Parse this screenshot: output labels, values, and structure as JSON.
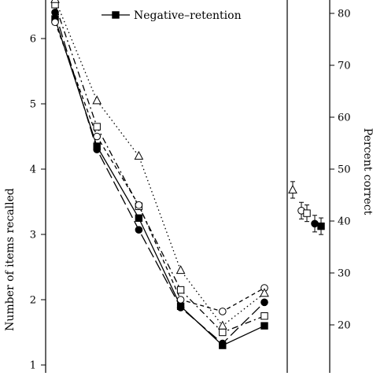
{
  "chart_data": {
    "type": "line",
    "left_panel": {
      "ylabel": "Number of items recalled",
      "ylim": [
        1,
        6.85
      ],
      "yticks": [
        1,
        2,
        3,
        4,
        5,
        6
      ],
      "x": [
        1,
        2,
        3,
        4,
        5,
        6
      ],
      "series": [
        {
          "key": "s1",
          "marker": "filled-square",
          "line": "solid",
          "values": [
            6.3,
            4.35,
            3.25,
            1.9,
            1.3,
            1.6
          ]
        },
        {
          "key": "s2",
          "marker": "filled-circle",
          "line": "long-dash",
          "values": [
            6.4,
            4.3,
            3.07,
            1.88,
            1.33,
            1.96
          ]
        },
        {
          "key": "s3",
          "marker": "open-square",
          "line": "dash-dot",
          "values": [
            6.52,
            4.65,
            3.43,
            2.15,
            1.5,
            1.75
          ]
        },
        {
          "key": "s4",
          "marker": "open-circle",
          "line": "short-dash",
          "values": [
            6.25,
            4.5,
            3.45,
            2.0,
            1.82,
            2.18
          ]
        },
        {
          "key": "s5",
          "marker": "open-triangle",
          "line": "dotted",
          "values": [
            6.6,
            5.05,
            4.2,
            2.45,
            1.6,
            2.1
          ]
        }
      ]
    },
    "right_panel": {
      "ylabel": "Percent correct",
      "ylim": [
        13,
        81
      ],
      "yticks": [
        20,
        30,
        40,
        50,
        60,
        70,
        80
      ],
      "points": [
        {
          "key": "s5",
          "marker": "open-triangle",
          "value": 46,
          "err": 1.6
        },
        {
          "key": "s4",
          "marker": "open-circle",
          "value": 42,
          "err": 1.6
        },
        {
          "key": "s3",
          "marker": "open-square",
          "value": 41.5,
          "err": 1.6
        },
        {
          "key": "s2",
          "marker": "filled-circle",
          "value": 39.5,
          "err": 1.6
        },
        {
          "key": "s1",
          "marker": "filled-square",
          "value": 39,
          "err": 1.6
        }
      ]
    },
    "legend": {
      "placement": "top-center",
      "entries": [
        {
          "marker": "filled-square",
          "line": "solid",
          "label": "Negative–retention"
        }
      ]
    }
  }
}
